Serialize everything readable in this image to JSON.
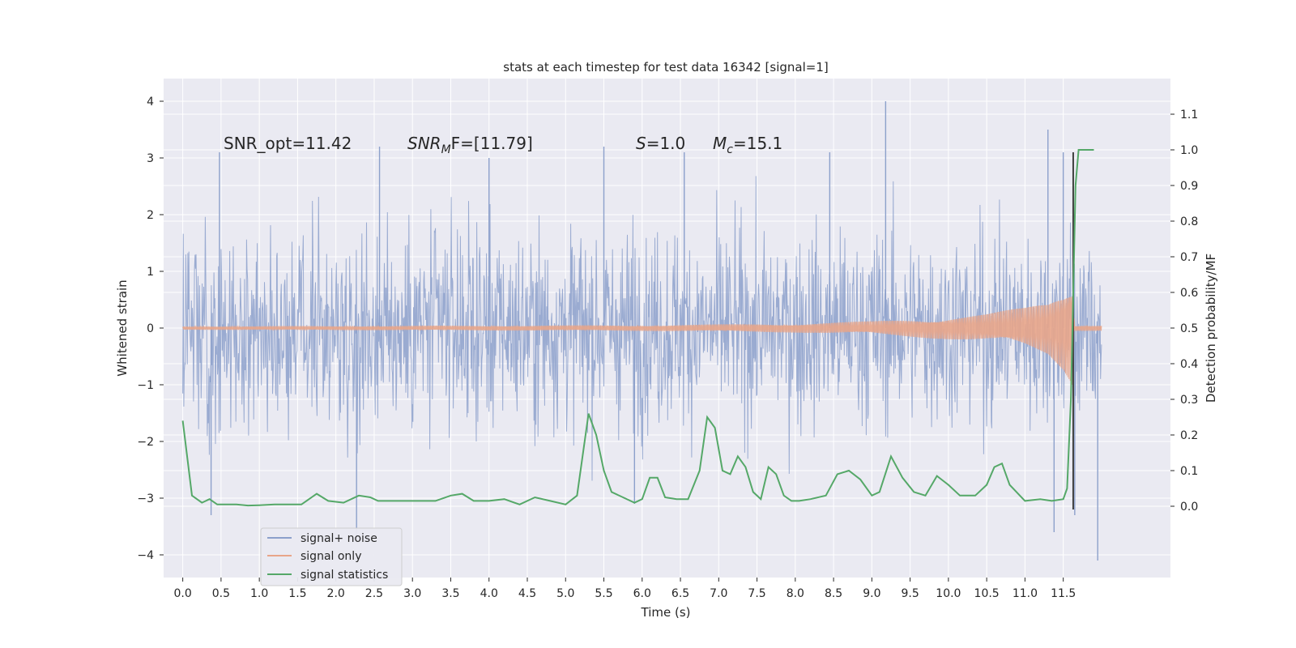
{
  "chart_data": {
    "type": "line",
    "title": "stats at each timestep for test data 16342 [signal=1]",
    "xlabel": "Time (s)",
    "ylabel_left": "Whitened strain",
    "ylabel_right": "Detection probability/MF",
    "xlim": [
      -0.25,
      12.9
    ],
    "ylim_left": [
      -4.4,
      4.4
    ],
    "ylim_right": [
      -0.2,
      1.2
    ],
    "x_ticks": [
      "0.0",
      "0.5",
      "1.0",
      "1.5",
      "2.0",
      "2.5",
      "3.0",
      "3.5",
      "4.0",
      "4.5",
      "5.0",
      "5.5",
      "6.0",
      "6.5",
      "7.0",
      "7.5",
      "8.0",
      "8.5",
      "9.0",
      "9.5",
      "10.0",
      "10.5",
      "11.0",
      "11.5"
    ],
    "y_ticks_left": [
      "4",
      "3",
      "2",
      "1",
      "0",
      "−1",
      "−2",
      "−3",
      "−4"
    ],
    "y_ticks_right": [
      "1.1",
      "1.0",
      "0.9",
      "0.8",
      "0.7",
      "0.6",
      "0.5",
      "0.4",
      "0.3",
      "0.2",
      "0.1",
      "0.0"
    ],
    "grid": true,
    "legend_position": "lower-left",
    "annotations": {
      "snr_opt": "SNR_opt=11.42",
      "snr_mf_main": "SNR",
      "snr_mf_sub": "M",
      "snr_mf_tail": "F=[11.79]",
      "s_main": "S",
      "s_tail": "=1.0",
      "mc_main": "M",
      "mc_sub": "c",
      "mc_tail": "=15.1"
    },
    "series": [
      {
        "name": "signal+ noise",
        "color": "#8ca0cb",
        "axis": "left",
        "x_range": [
          0.0,
          12.0
        ],
        "envelope": {
          "typical_abs": 2.3,
          "core_abs": 1.25
        },
        "spikes": [
          {
            "x": 0.48,
            "y": 3.1
          },
          {
            "x": 2.57,
            "y": 3.2
          },
          {
            "x": 4.0,
            "y": 3.0
          },
          {
            "x": 5.5,
            "y": 3.2
          },
          {
            "x": 6.55,
            "y": 3.1
          },
          {
            "x": 8.45,
            "y": 3.1
          },
          {
            "x": 9.18,
            "y": 4.0
          },
          {
            "x": 11.3,
            "y": 3.5
          },
          {
            "x": 11.5,
            "y": 3.1
          },
          {
            "x": 2.27,
            "y": -3.7
          },
          {
            "x": 0.37,
            "y": -3.3
          },
          {
            "x": 11.38,
            "y": -3.6
          },
          {
            "x": 11.65,
            "y": -3.3
          },
          {
            "x": 11.95,
            "y": -4.1
          },
          {
            "x": 5.9,
            "y": -3.1
          }
        ]
      },
      {
        "name": "signal only",
        "color": "#e8a589",
        "axis": "left",
        "amplitude": [
          [
            0.0,
            0.03
          ],
          [
            3.0,
            0.04
          ],
          [
            6.0,
            0.05
          ],
          [
            8.0,
            0.08
          ],
          [
            9.0,
            0.12
          ],
          [
            10.0,
            0.2
          ],
          [
            10.5,
            0.25
          ],
          [
            11.0,
            0.37
          ],
          [
            11.3,
            0.5
          ],
          [
            11.5,
            0.75
          ],
          [
            11.62,
            1.0
          ],
          [
            11.65,
            0.05
          ],
          [
            12.0,
            0.05
          ]
        ]
      },
      {
        "name": "signal statistics",
        "color": "#55a868",
        "axis": "right",
        "x": [
          0.0,
          0.12,
          0.25,
          0.35,
          0.45,
          0.55,
          0.7,
          0.85,
          1.0,
          1.2,
          1.4,
          1.55,
          1.75,
          1.9,
          2.1,
          2.3,
          2.45,
          2.55,
          2.7,
          2.9,
          3.1,
          3.3,
          3.5,
          3.65,
          3.8,
          4.0,
          4.2,
          4.4,
          4.6,
          4.8,
          5.0,
          5.15,
          5.3,
          5.4,
          5.5,
          5.6,
          5.75,
          5.9,
          6.0,
          6.1,
          6.2,
          6.3,
          6.45,
          6.6,
          6.75,
          6.85,
          6.95,
          7.05,
          7.15,
          7.25,
          7.35,
          7.45,
          7.55,
          7.65,
          7.75,
          7.85,
          7.95,
          8.05,
          8.2,
          8.4,
          8.55,
          8.7,
          8.85,
          9.0,
          9.1,
          9.25,
          9.4,
          9.55,
          9.7,
          9.85,
          10.0,
          10.15,
          10.35,
          10.5,
          10.6,
          10.7,
          10.8,
          11.0,
          11.2,
          11.35,
          11.5,
          11.55,
          11.6,
          11.63,
          11.66,
          11.7,
          11.75,
          11.82,
          11.9
        ],
        "y": [
          0.24,
          0.03,
          0.01,
          0.02,
          0.005,
          0.005,
          0.005,
          0.002,
          0.003,
          0.005,
          0.005,
          0.005,
          0.035,
          0.015,
          0.01,
          0.03,
          0.025,
          0.015,
          0.015,
          0.015,
          0.015,
          0.015,
          0.03,
          0.035,
          0.015,
          0.015,
          0.02,
          0.005,
          0.025,
          0.015,
          0.005,
          0.03,
          0.26,
          0.2,
          0.1,
          0.04,
          0.025,
          0.01,
          0.02,
          0.08,
          0.08,
          0.025,
          0.02,
          0.02,
          0.1,
          0.25,
          0.22,
          0.1,
          0.09,
          0.14,
          0.11,
          0.04,
          0.02,
          0.11,
          0.09,
          0.03,
          0.015,
          0.015,
          0.02,
          0.03,
          0.09,
          0.1,
          0.075,
          0.03,
          0.04,
          0.14,
          0.08,
          0.04,
          0.03,
          0.085,
          0.06,
          0.03,
          0.03,
          0.06,
          0.11,
          0.12,
          0.06,
          0.015,
          0.02,
          0.015,
          0.02,
          0.05,
          0.3,
          0.6,
          0.9,
          1.0,
          1.0,
          1.0,
          1.0
        ]
      }
    ],
    "marker_line": {
      "x": 11.63,
      "y_range": [
        -3.2,
        3.1
      ],
      "color": "#404040"
    }
  }
}
